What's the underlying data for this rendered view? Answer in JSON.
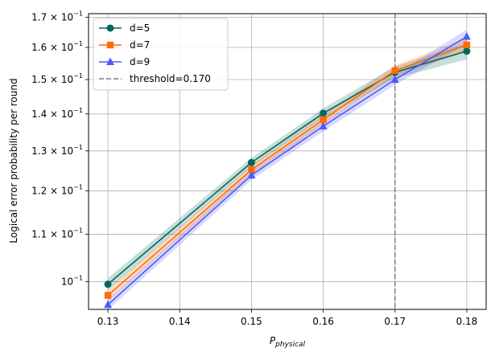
{
  "chart_data": {
    "type": "line",
    "xlabel_base": "P",
    "xlabel_sub": "physical",
    "ylabel": "Logical error probability per round",
    "y_scale": "log",
    "grid": true,
    "legend_position": "top-left",
    "xlim": [
      0.1273,
      0.1827
    ],
    "ylim": [
      0.0946,
      0.1712
    ],
    "x_ticks": [
      0.13,
      0.14,
      0.15,
      0.16,
      0.17,
      0.18
    ],
    "x_tick_labels": [
      "0.13",
      "0.14",
      "0.15",
      "0.16",
      "0.17",
      "0.18"
    ],
    "y_ticks": [
      {
        "value": 0.1,
        "mantissa": "10",
        "exponent": "−1"
      },
      {
        "value": 0.11,
        "mantissa": "1.1 × 10",
        "exponent": "−1"
      },
      {
        "value": 0.12,
        "mantissa": "1.2 × 10",
        "exponent": "−1"
      },
      {
        "value": 0.13,
        "mantissa": "1.3 × 10",
        "exponent": "−1"
      },
      {
        "value": 0.14,
        "mantissa": "1.4 × 10",
        "exponent": "−1"
      },
      {
        "value": 0.15,
        "mantissa": "1.5 × 10",
        "exponent": "−1"
      },
      {
        "value": 0.16,
        "mantissa": "1.6 × 10",
        "exponent": "−1"
      },
      {
        "value": 0.17,
        "mantissa": "1.7 × 10",
        "exponent": "−1"
      }
    ],
    "x": [
      0.13,
      0.15,
      0.16,
      0.17,
      0.18
    ],
    "series": [
      {
        "name": "d=5",
        "color": "#00695c",
        "marker": "circle",
        "values": [
          0.0995,
          0.127,
          0.1402,
          0.1522,
          0.1588
        ],
        "lower": [
          0.0983,
          0.1258,
          0.1388,
          0.1504,
          0.1562
        ],
        "upper": [
          0.1007,
          0.1282,
          0.1416,
          0.154,
          0.1614
        ]
      },
      {
        "name": "d=7",
        "color": "#ff6b00",
        "marker": "square",
        "values": [
          0.0973,
          0.1252,
          0.1384,
          0.1527,
          0.1608
        ],
        "lower": [
          0.0962,
          0.124,
          0.137,
          0.1511,
          0.1586
        ],
        "upper": [
          0.0984,
          0.1264,
          0.1398,
          0.1543,
          0.163
        ]
      },
      {
        "name": "d=9",
        "color": "#4d5bf9",
        "marker": "triangle",
        "values": [
          0.0955,
          0.1238,
          0.1366,
          0.15,
          0.1635
        ],
        "lower": [
          0.0945,
          0.1226,
          0.1352,
          0.1484,
          0.1612
        ],
        "upper": [
          0.0965,
          0.125,
          0.138,
          0.1516,
          0.1658
        ]
      }
    ],
    "threshold": {
      "value": 0.17,
      "label": "threshold=0.170",
      "color": "#808080"
    }
  }
}
